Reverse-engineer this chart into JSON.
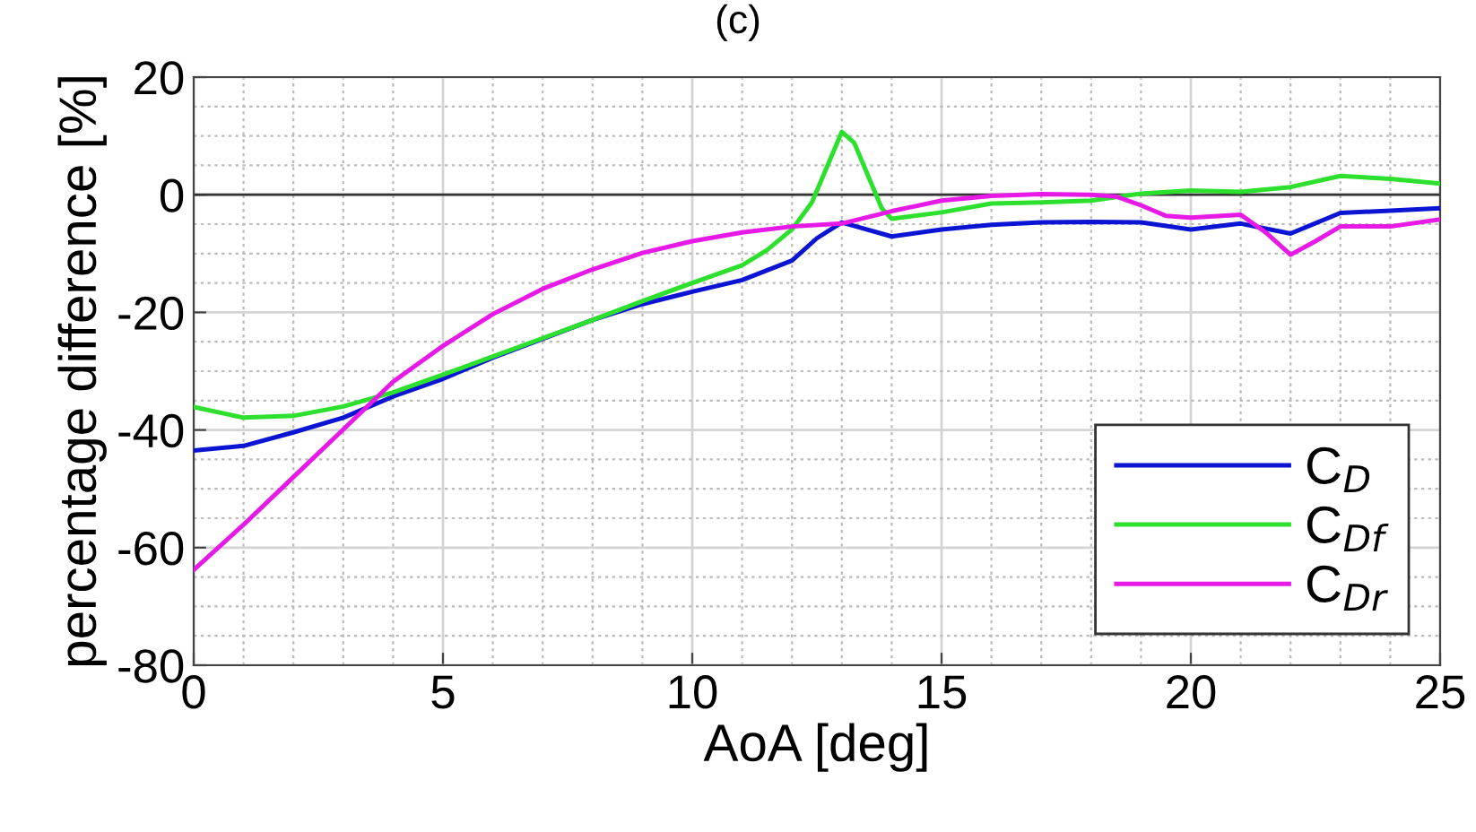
{
  "chart_data": {
    "type": "line",
    "title": "(c)",
    "xlabel": "AoA [deg]",
    "ylabel": "percentage difference [%]",
    "xlim": [
      0,
      25
    ],
    "xticks": [
      0,
      5,
      10,
      15,
      20,
      25
    ],
    "ylim": [
      -80,
      20
    ],
    "yticks": [
      -80,
      -60,
      -40,
      -20,
      0,
      20
    ],
    "grid": true,
    "legend": "bottom right",
    "line_style": "solid",
    "marker": "none",
    "ref_lines": [
      {
        "axis": "y",
        "value": 0,
        "label": null,
        "color": "#333333"
      }
    ],
    "series": [
      {
        "name": "C$_{D}$",
        "color": "#0a14d2",
        "x": [
          0,
          1,
          2,
          3,
          4,
          5,
          6,
          7,
          8,
          9,
          10,
          11,
          12,
          12.5,
          13,
          14,
          15,
          16,
          17,
          18,
          19,
          20,
          21,
          22,
          23,
          24,
          25
        ],
        "values": [
          -43.5,
          -42.7,
          -40.4,
          -37.9,
          -34.3,
          -31.3,
          -27.7,
          -24.5,
          -21.3,
          -18.6,
          -16.5,
          -14.5,
          -11.2,
          -7.4,
          -4.7,
          -7.1,
          -5.9,
          -5.1,
          -4.7,
          -4.6,
          -4.7,
          -5.9,
          -4.9,
          -6.6,
          -3.1,
          -2.7,
          -2.3
        ]
      },
      {
        "name": "C$_{Df}$",
        "color": "#2ee02e",
        "x": [
          0,
          1,
          2,
          3,
          4,
          5,
          6,
          7,
          8,
          9,
          10,
          11,
          11.5,
          12,
          12.4,
          13,
          13.25,
          13.8,
          14,
          15,
          16,
          17,
          18,
          19,
          20,
          21,
          22,
          23,
          24,
          25
        ],
        "values": [
          -36.1,
          -37.9,
          -37.6,
          -36,
          -33.6,
          -30.6,
          -27.5,
          -24.4,
          -21.3,
          -18.1,
          -15,
          -12,
          -9.4,
          -5.9,
          -1.3,
          10.7,
          8.8,
          -2.3,
          -4.1,
          -3,
          -1.5,
          -1.3,
          -1,
          0.2,
          0.7,
          0.5,
          1.3,
          3.2,
          2.7,
          1.9
        ]
      },
      {
        "name": "C$_{Dr}$",
        "color": "#e619e6",
        "x": [
          0,
          1,
          2,
          3,
          4,
          5,
          6,
          7,
          8,
          9,
          10,
          11,
          12,
          13,
          14,
          15,
          16,
          17,
          18,
          18.5,
          19,
          19.5,
          20,
          21,
          21.5,
          22,
          22.5,
          23,
          24,
          25
        ],
        "values": [
          -63.8,
          -56.1,
          -48,
          -39.9,
          -31.8,
          -25.7,
          -20.3,
          -16,
          -12.7,
          -9.9,
          -7.9,
          -6.4,
          -5.4,
          -4.9,
          -2.8,
          -1,
          -0.2,
          0.1,
          0,
          -0.3,
          -1.8,
          -3.6,
          -3.9,
          -3.4,
          -6.4,
          -10.2,
          -7.9,
          -5.4,
          -5.4,
          -4.2
        ]
      }
    ]
  }
}
